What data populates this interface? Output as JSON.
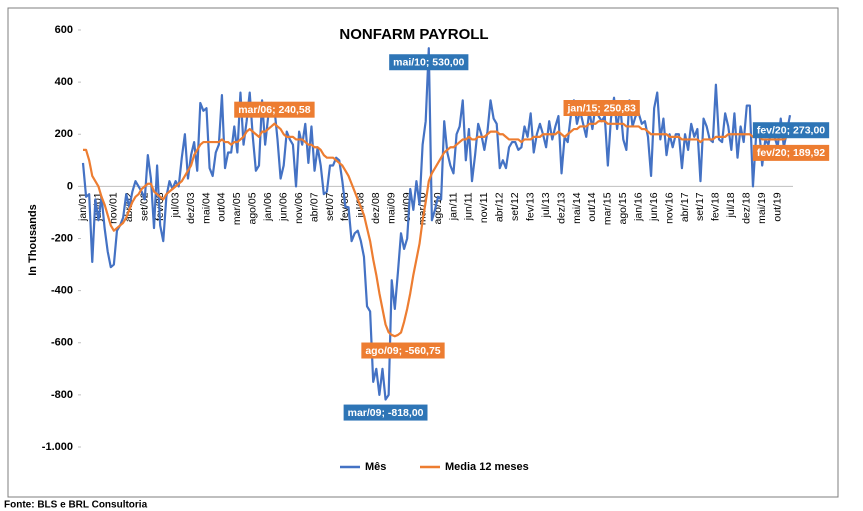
{
  "chart_data": {
    "type": "line",
    "title": "NONFARM PAYROLL",
    "y_label": "In Thousands",
    "source": "Fonte: BLS e BRL Consultoria",
    "ylim": [
      -1000,
      600
    ],
    "yticks": [
      600,
      400,
      200,
      0,
      -200,
      -400,
      -600,
      -800,
      {
        "value": -1000,
        "label": "-1.000"
      }
    ],
    "grid": false,
    "legend": "bottom",
    "categories": [
      "jan/01",
      null,
      null,
      null,
      null,
      "jun/01",
      null,
      null,
      null,
      null,
      "nov/01",
      null,
      null,
      null,
      null,
      "abr/02",
      null,
      null,
      null,
      null,
      "set/02",
      null,
      null,
      null,
      null,
      "fev/03",
      null,
      null,
      null,
      null,
      "jul/03",
      null,
      null,
      null,
      null,
      "dez/03",
      null,
      null,
      null,
      null,
      "mai/04",
      null,
      null,
      null,
      null,
      "out/04",
      null,
      null,
      null,
      null,
      "mar/05",
      null,
      null,
      null,
      null,
      "ago/05",
      null,
      null,
      null,
      null,
      "jan/06",
      null,
      null,
      null,
      null,
      "jun/06",
      null,
      null,
      null,
      null,
      "nov/06",
      null,
      null,
      null,
      null,
      "abr/07",
      null,
      null,
      null,
      null,
      "set/07",
      null,
      null,
      null,
      null,
      "fev/08",
      null,
      null,
      null,
      null,
      "jul/08",
      null,
      null,
      null,
      null,
      "dez/08",
      null,
      null,
      null,
      null,
      "mai/09",
      null,
      null,
      null,
      null,
      "out/09",
      null,
      null,
      null,
      null,
      "mar/10",
      null,
      null,
      null,
      null,
      "ago/10",
      null,
      null,
      null,
      null,
      "jan/11",
      null,
      null,
      null,
      null,
      "jun/11",
      null,
      null,
      null,
      null,
      "nov/11",
      null,
      null,
      null,
      null,
      "abr/12",
      null,
      null,
      null,
      null,
      "set/12",
      null,
      null,
      null,
      null,
      "fev/13",
      null,
      null,
      null,
      null,
      "jul/13",
      null,
      null,
      null,
      null,
      "dez/13",
      null,
      null,
      null,
      null,
      "mai/14",
      null,
      null,
      null,
      null,
      "out/14",
      null,
      null,
      null,
      null,
      "mar/15",
      null,
      null,
      null,
      null,
      "ago/15",
      null,
      null,
      null,
      null,
      "jan/16",
      null,
      null,
      null,
      null,
      "jun/16",
      null,
      null,
      null,
      null,
      "nov/16",
      null,
      null,
      null,
      null,
      "abr/17",
      null,
      null,
      null,
      null,
      "set/17",
      null,
      null,
      null,
      null,
      "fev/18",
      null,
      null,
      null,
      null,
      "jul/18",
      null,
      null,
      null,
      null,
      "dez/18",
      null,
      null,
      null,
      null,
      "mai/19",
      null,
      null,
      null,
      null,
      "out/19",
      null,
      null,
      null,
      null
    ],
    "series": [
      {
        "name": "Mês",
        "color": "#4472c4",
        "values": [
          90,
          -40,
          -30,
          -290,
          -50,
          -130,
          -40,
          -160,
          -250,
          -310,
          -300,
          -170,
          -150,
          -120,
          -30,
          -80,
          -20,
          20,
          0,
          -20,
          -50,
          120,
          30,
          -160,
          80,
          -150,
          -210,
          -40,
          20,
          -10,
          20,
          0,
          110,
          200,
          30,
          120,
          170,
          60,
          320,
          290,
          300,
          70,
          40,
          130,
          160,
          350,
          70,
          130,
          130,
          230,
          130,
          360,
          160,
          250,
          360,
          190,
          60,
          80,
          330,
          160,
          270,
          320,
          300,
          180,
          30,
          80,
          210,
          180,
          160,
          0,
          210,
          160,
          240,
          90,
          230,
          60,
          150,
          80,
          -30,
          -20,
          80,
          80,
          110,
          100,
          20,
          -80,
          -80,
          -210,
          -180,
          -170,
          -210,
          -270,
          -460,
          -480,
          -750,
          -700,
          -800,
          -700,
          -818,
          -800,
          -360,
          -470,
          -330,
          -180,
          -240,
          -200,
          -10,
          -90,
          20,
          -70,
          160,
          250,
          530,
          -130,
          -90,
          -40,
          -50,
          250,
          130,
          80,
          50,
          200,
          230,
          330,
          100,
          220,
          20,
          120,
          240,
          200,
          140,
          210,
          330,
          260,
          240,
          70,
          100,
          70,
          150,
          170,
          170,
          140,
          150,
          230,
          190,
          280,
          130,
          200,
          240,
          200,
          150,
          250,
          180,
          230,
          270,
          50,
          190,
          170,
          270,
          330,
          240,
          290,
          240,
          190,
          290,
          220,
          310,
          270,
          250,
          270,
          80,
          260,
          340,
          220,
          310,
          180,
          140,
          330,
          230,
          270,
          280,
          240,
          250,
          190,
          40,
          300,
          360,
          180,
          260,
          120,
          200,
          150,
          200,
          200,
          70,
          200,
          140,
          240,
          190,
          220,
          20,
          260,
          230,
          180,
          170,
          390,
          180,
          170,
          280,
          230,
          140,
          280,
          110,
          230,
          170,
          310,
          310,
          0,
          190,
          220,
          80,
          180,
          160,
          220,
          190,
          150,
          260,
          150,
          210,
          273
        ],
        "value_labels": {
          "98": "mar/09; -818,00",
          "112": "mai/10; 530,00",
          "229": "fev/20; 273,00"
        }
      },
      {
        "name": "Media 12 meses",
        "color": "#ed7d31",
        "values": [
          140,
          140,
          100,
          40,
          20,
          0,
          -40,
          -70,
          -110,
          -150,
          -170,
          -160,
          -150,
          -140,
          -120,
          -90,
          -60,
          -40,
          -30,
          -10,
          0,
          10,
          10,
          -20,
          -30,
          -40,
          -50,
          -30,
          -20,
          -10,
          0,
          10,
          20,
          40,
          60,
          80,
          120,
          140,
          160,
          170,
          170,
          170,
          170,
          170,
          170,
          180,
          170,
          170,
          160,
          170,
          170,
          180,
          190,
          210,
          220,
          210,
          200,
          190,
          210,
          210,
          220,
          230,
          240.58,
          230,
          220,
          200,
          190,
          190,
          190,
          180,
          180,
          180,
          170,
          160,
          160,
          150,
          150,
          140,
          120,
          110,
          110,
          110,
          100,
          90,
          80,
          60,
          40,
          10,
          -20,
          -50,
          -80,
          -110,
          -160,
          -210,
          -280,
          -340,
          -410,
          -470,
          -530,
          -560,
          -570,
          -575,
          -570,
          -560.75,
          -520,
          -470,
          -410,
          -340,
          -280,
          -220,
          -130,
          -60,
          20,
          50,
          70,
          90,
          110,
          130,
          140,
          150,
          150,
          160,
          170,
          180,
          180,
          190,
          180,
          180,
          190,
          190,
          190,
          200,
          210,
          210,
          210,
          200,
          200,
          190,
          180,
          180,
          180,
          180,
          170,
          180,
          180,
          180,
          190,
          190,
          190,
          200,
          200,
          200,
          200,
          200,
          210,
          200,
          190,
          200,
          210,
          220,
          220,
          230,
          230,
          230,
          240,
          240,
          240,
          250,
          250.83,
          250,
          240,
          240,
          240,
          240,
          240,
          240,
          230,
          230,
          230,
          230,
          230,
          220,
          220,
          210,
          200,
          200,
          200,
          200,
          200,
          200,
          190,
          190,
          190,
          190,
          180,
          180,
          180,
          180,
          180,
          180,
          170,
          180,
          180,
          180,
          180,
          190,
          190,
          190,
          190,
          200,
          200,
          200,
          200,
          200,
          200,
          200,
          200,
          190,
          190,
          190,
          180,
          180,
          180,
          180,
          180,
          180,
          180,
          180,
          190,
          189.92
        ],
        "value_labels": {
          "62": "mar/06; 240,58",
          "103": "ago/09; -560,75",
          "168": "jan/15; 250,83",
          "229": "fev/20; 189,92"
        }
      }
    ]
  }
}
